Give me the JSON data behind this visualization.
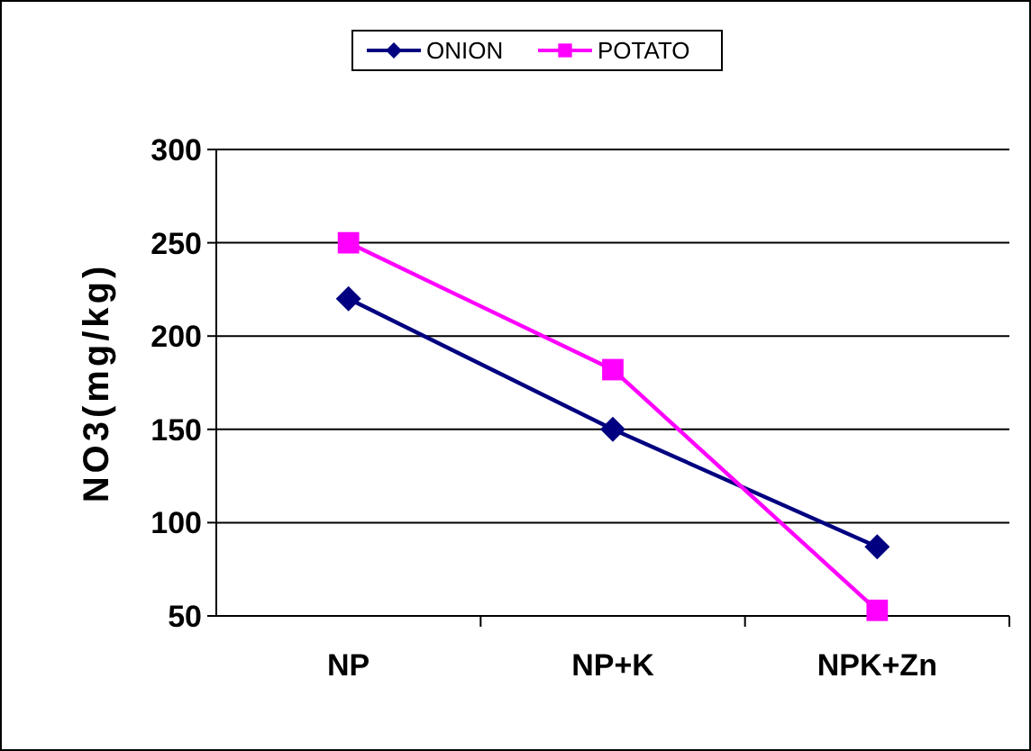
{
  "chart_data": {
    "type": "line",
    "ylabel": "NO3(mg/kg)",
    "categories": [
      "NP",
      "NP+K",
      "NPK+Zn"
    ],
    "series": [
      {
        "name": "ONION",
        "color": "#000080",
        "values": [
          220,
          150,
          87
        ],
        "marker": "diamond"
      },
      {
        "name": "POTATO",
        "color": "#ff00ff",
        "values": [
          250,
          182,
          53
        ],
        "marker": "square"
      }
    ],
    "ylim": [
      50,
      300
    ],
    "yticks": [
      50,
      100,
      150,
      200,
      250,
      300
    ],
    "grid": "y",
    "legend": "top",
    "line_style": "solid"
  }
}
